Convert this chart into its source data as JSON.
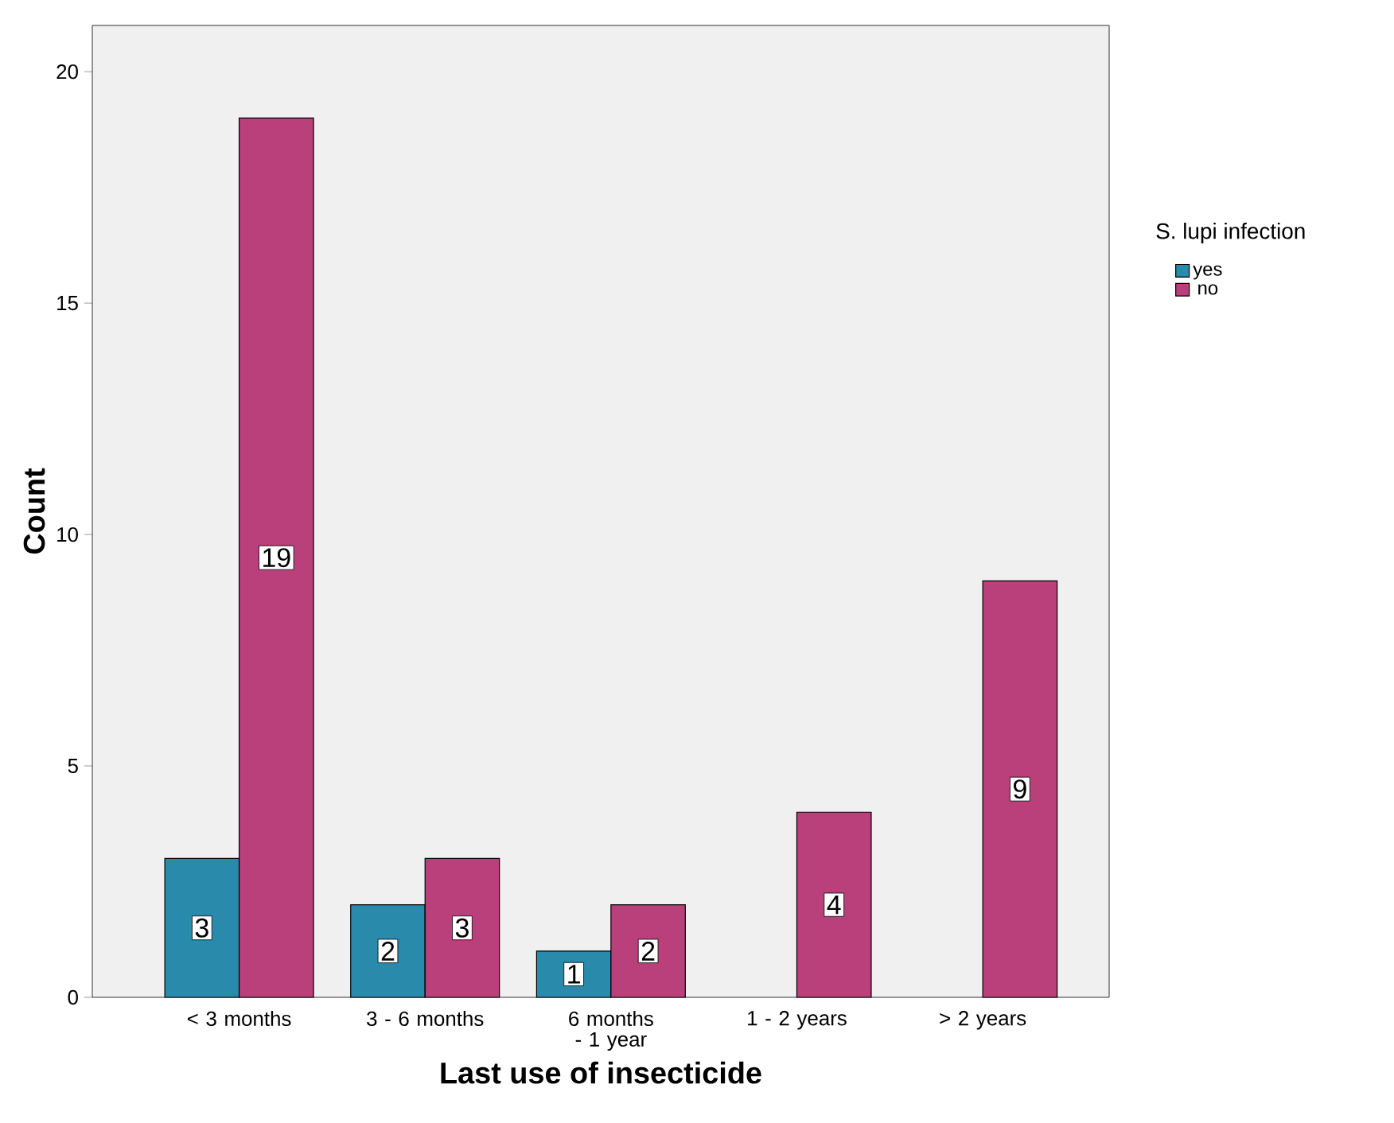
{
  "chart_data": {
    "type": "bar",
    "xlabel": "Last use of insecticide",
    "ylabel": "Count",
    "legend_title": "S. lupi infection",
    "categories": [
      "< 3 months",
      "3 - 6 months",
      "6 months - 1 year",
      "1 - 2 years",
      "> 2 years"
    ],
    "series": [
      {
        "name": "yes",
        "color": "#2a8aab",
        "values": [
          3,
          2,
          1,
          null,
          null
        ]
      },
      {
        "name": "no",
        "color": "#b9407a",
        "values": [
          19,
          3,
          2,
          4,
          9
        ]
      }
    ],
    "ylim": [
      0,
      21
    ],
    "yticks": [
      0,
      5,
      10,
      15,
      20
    ],
    "data_labels": true,
    "legend": "right",
    "grid": false
  }
}
